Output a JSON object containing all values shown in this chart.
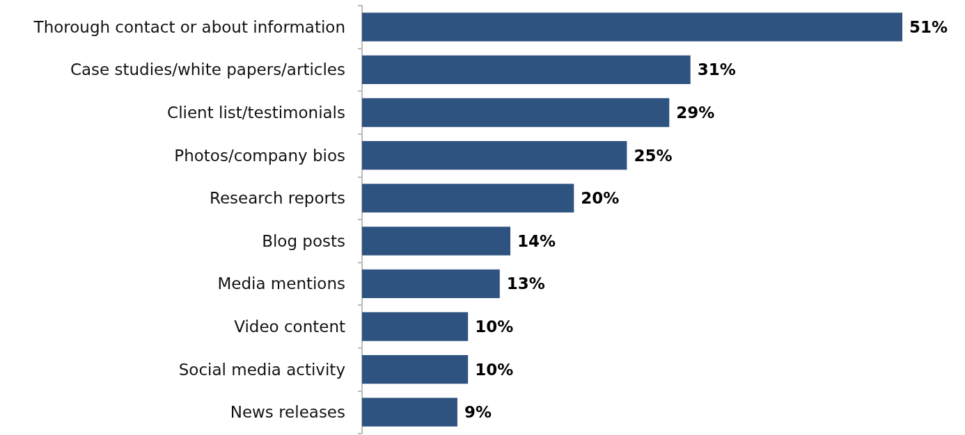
{
  "chart_data": {
    "type": "bar",
    "orientation": "horizontal",
    "categories": [
      "Thorough contact or about information",
      "Case studies/white papers/articles",
      "Client list/testimonials",
      "Photos/company bios",
      "Research reports",
      "Blog posts",
      "Media mentions",
      "Video content",
      "Social media activity",
      "News releases"
    ],
    "values": [
      51,
      31,
      29,
      25,
      20,
      14,
      13,
      10,
      10,
      9
    ],
    "value_labels": [
      "51%",
      "31%",
      "29%",
      "25%",
      "20%",
      "14%",
      "13%",
      "10%",
      "10%",
      "9%"
    ],
    "color": "#2f5380"
  }
}
